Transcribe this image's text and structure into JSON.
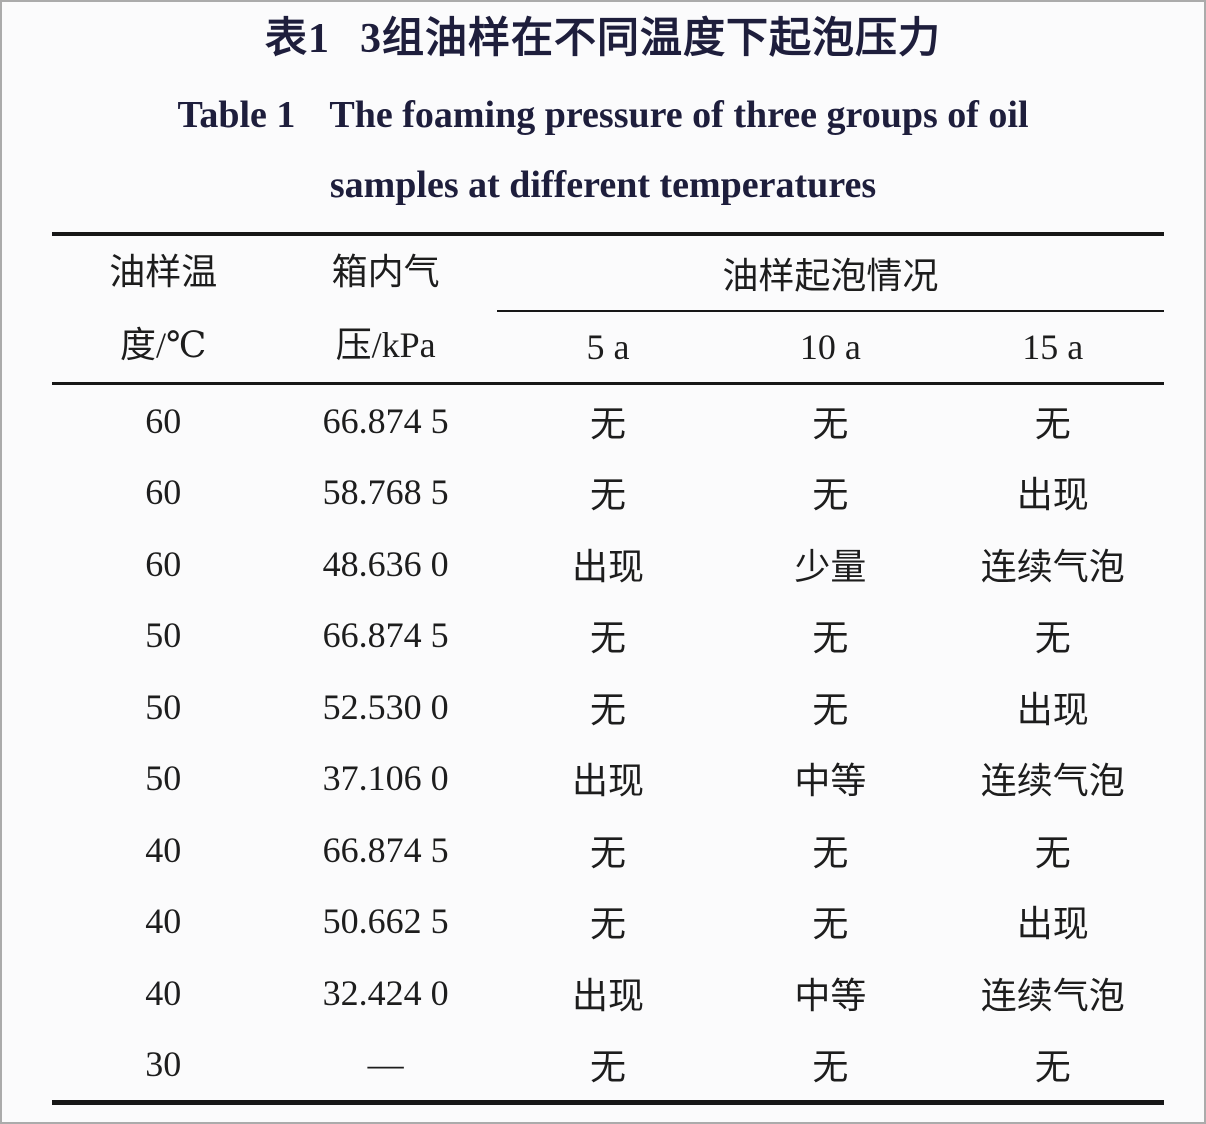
{
  "caption": {
    "zh_label": "表1",
    "zh_title": "3组油样在不同温度下起泡压力",
    "en_label": "Table 1",
    "en_title_line1": "The foaming pressure of three groups of oil",
    "en_title_line2": "samples at different temperatures"
  },
  "table": {
    "col1_header_line1": "油样温",
    "col1_header_line2": "度/℃",
    "col2_header_line1": "箱内气",
    "col2_header_line2": "压/kPa",
    "group_header": "油样起泡情况",
    "subheaders": [
      "5 a",
      "10 a",
      "15 a"
    ],
    "rows": [
      [
        "60",
        "66.874 5",
        "无",
        "无",
        "无"
      ],
      [
        "60",
        "58.768 5",
        "无",
        "无",
        "出现"
      ],
      [
        "60",
        "48.636 0",
        "出现",
        "少量",
        "连续气泡"
      ],
      [
        "50",
        "66.874 5",
        "无",
        "无",
        "无"
      ],
      [
        "50",
        "52.530 0",
        "无",
        "无",
        "出现"
      ],
      [
        "50",
        "37.106 0",
        "出现",
        "中等",
        "连续气泡"
      ],
      [
        "40",
        "66.874 5",
        "无",
        "无",
        "无"
      ],
      [
        "40",
        "50.662 5",
        "无",
        "无",
        "出现"
      ],
      [
        "40",
        "32.424 0",
        "出现",
        "中等",
        "连续气泡"
      ],
      [
        "30",
        "—",
        "无",
        "无",
        "无"
      ]
    ]
  },
  "chart_data": {
    "type": "table",
    "title": "表1 3组油样在不同温度下起泡压力 / Table 1 The foaming pressure of three groups of oil samples at different temperatures",
    "columns": [
      "油样温度/℃",
      "箱内气压/kPa",
      "油样起泡情况 5 a",
      "油样起泡情况 10 a",
      "油样起泡情况 15 a"
    ],
    "rows": [
      [
        60,
        66.8745,
        "无",
        "无",
        "无"
      ],
      [
        60,
        58.7685,
        "无",
        "无",
        "出现"
      ],
      [
        60,
        48.636,
        "出现",
        "少量",
        "连续气泡"
      ],
      [
        50,
        66.8745,
        "无",
        "无",
        "无"
      ],
      [
        50,
        52.53,
        "无",
        "无",
        "出现"
      ],
      [
        50,
        37.106,
        "出现",
        "中等",
        "连续气泡"
      ],
      [
        40,
        66.8745,
        "无",
        "无",
        "无"
      ],
      [
        40,
        50.6625,
        "无",
        "无",
        "出现"
      ],
      [
        40,
        32.424,
        "出现",
        "中等",
        "连续气泡"
      ],
      [
        30,
        null,
        "无",
        "无",
        "无"
      ]
    ]
  },
  "colors": {
    "title_text": "#1e1e3c",
    "body_text": "#1d1d1d",
    "rule": "#171717",
    "background": "#fbfbfc"
  }
}
